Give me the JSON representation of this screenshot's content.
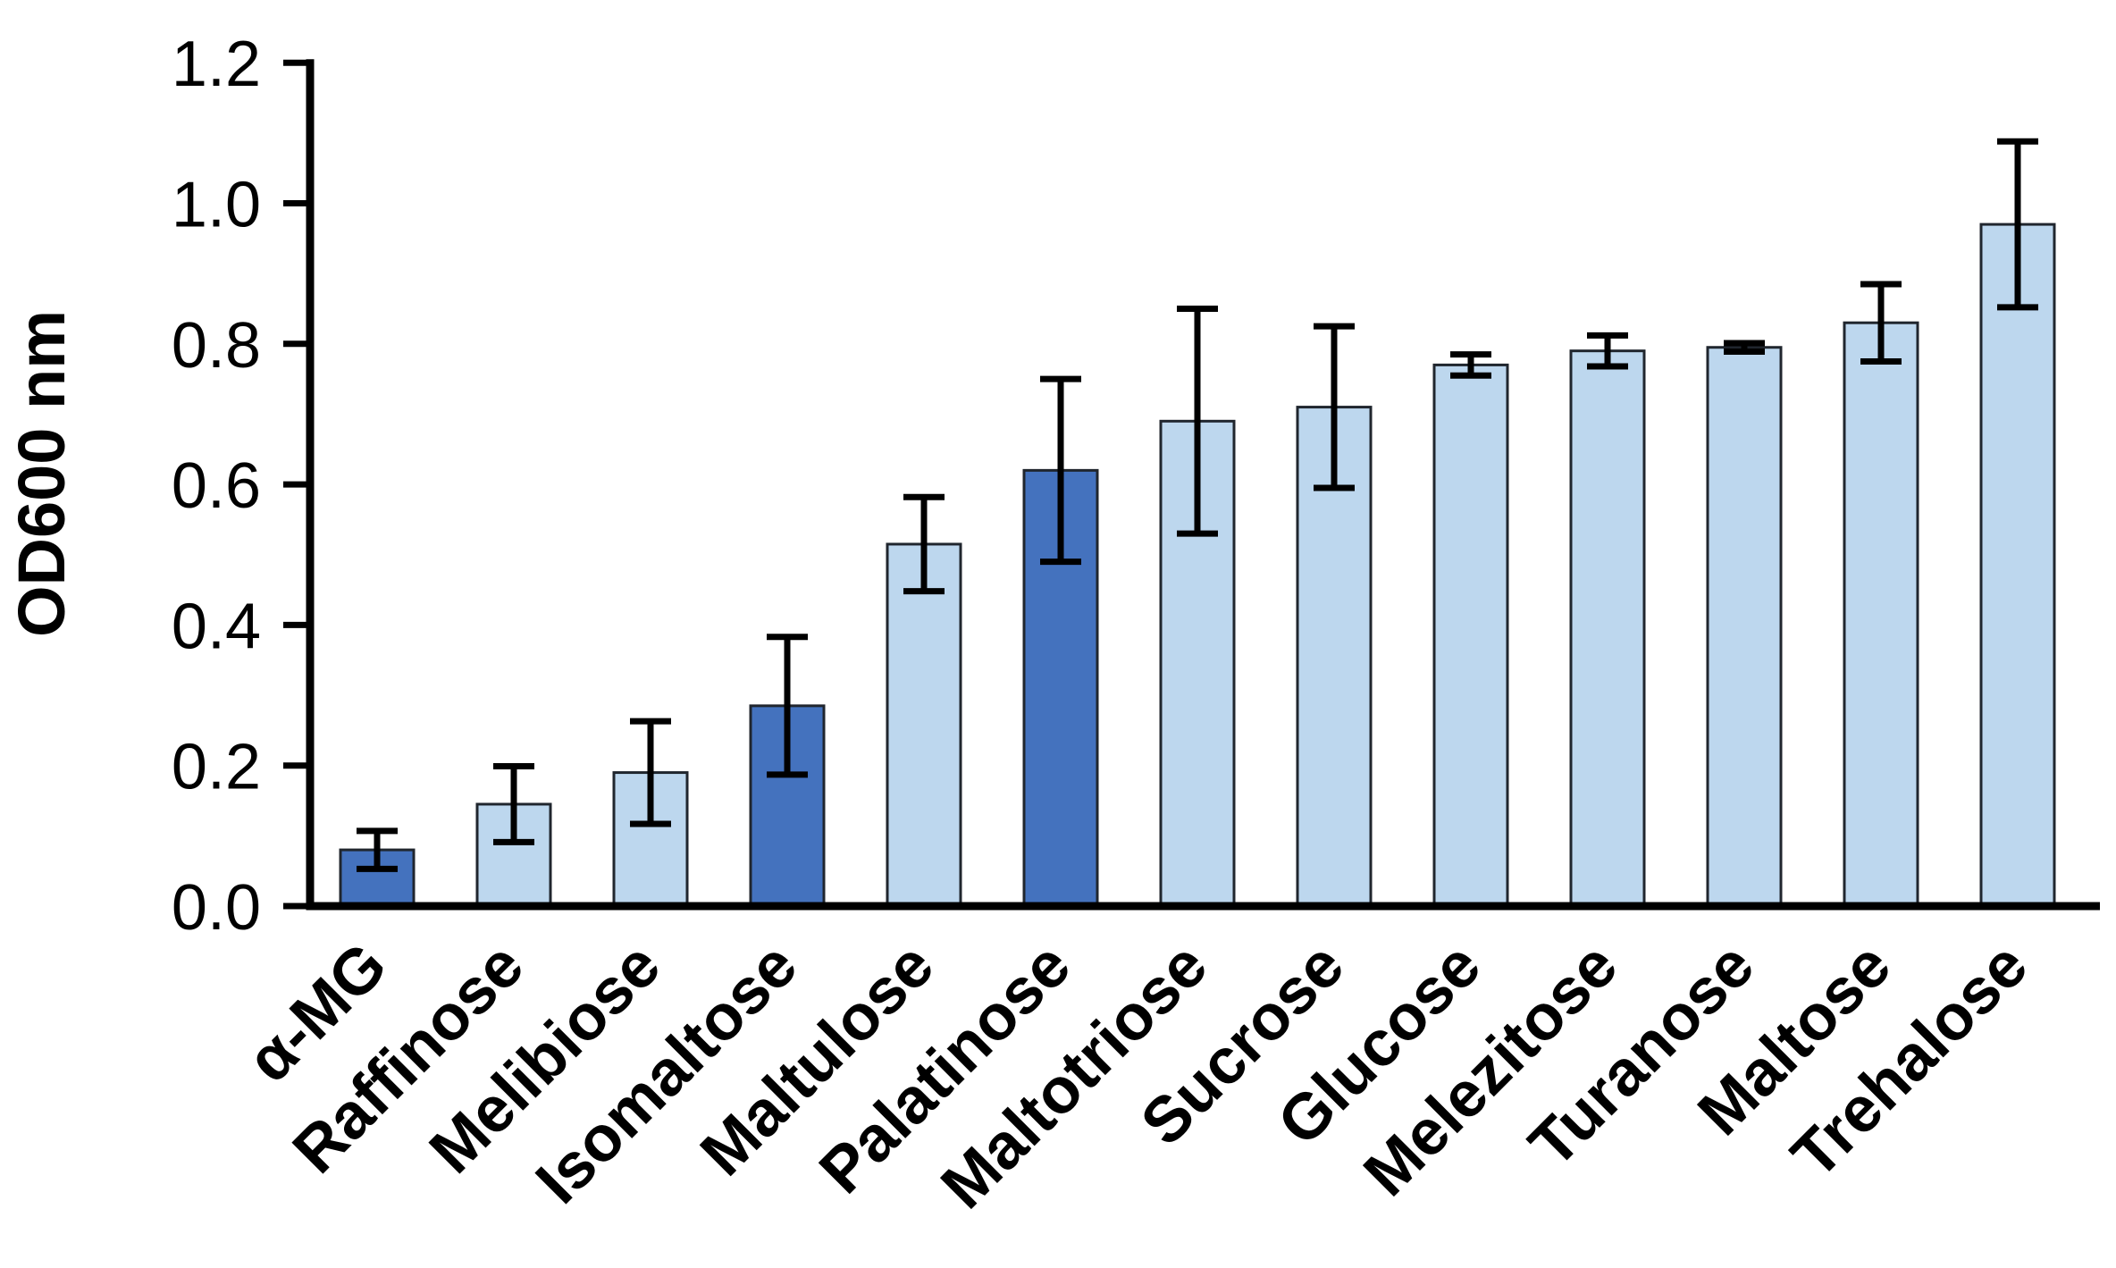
{
  "chart_data": {
    "type": "bar",
    "title": "",
    "ylabel": "OD600 nm",
    "xlabel": "",
    "ylim": [
      0,
      1.2
    ],
    "ytick_step": 0.2,
    "ytick_labels": [
      "0.0",
      "0.2",
      "0.4",
      "0.6",
      "0.8",
      "1.0",
      "1.2"
    ],
    "grid": false,
    "legend_position": "none",
    "categories": [
      "α-MG",
      "Raffinose",
      "Melibiose",
      "Isomaltose",
      "Maltulose",
      "Palatinose",
      "Maltotriose",
      "Sucrose",
      "Glucose",
      "Melezitose",
      "Turanose",
      "Maltose",
      "Trehalose"
    ],
    "values": [
      0.08,
      0.145,
      0.19,
      0.285,
      0.515,
      0.62,
      0.69,
      0.71,
      0.77,
      0.79,
      0.795,
      0.83,
      0.97
    ],
    "errors": [
      0.027,
      0.054,
      0.073,
      0.098,
      0.067,
      0.13,
      0.16,
      0.115,
      0.015,
      0.022,
      0.006,
      0.055,
      0.118
    ],
    "bar_styles": [
      "dark",
      "light",
      "light",
      "dark",
      "light",
      "dark",
      "light",
      "light",
      "light",
      "light",
      "light",
      "light",
      "light"
    ],
    "colors": {
      "dark_fill": "#4472BE",
      "light_fill": "#BDD7EE",
      "bar_border": "#20262E",
      "error_bar": "#000000",
      "axis": "#000000",
      "text": "#000000"
    }
  }
}
